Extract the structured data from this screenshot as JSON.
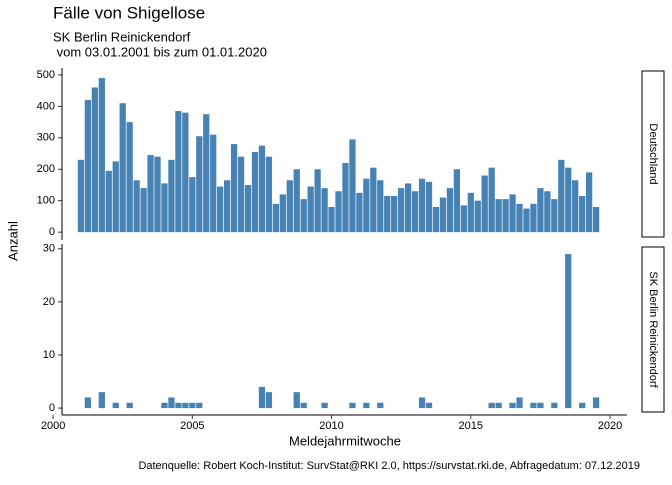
{
  "chart_data": {
    "type": "bar",
    "title": "Fälle von Shigellose",
    "subtitle": [
      "SK Berlin Reinickendorf",
      " vom 03.01.2001 bis zum 01.01.2020"
    ],
    "xlabel": "Meldejahrmitwoche",
    "ylabel": "Anzahl",
    "caption": "Datenquelle: Robert Koch-Institut: SurvStat@RKI 2.0, https://survstat.rki.de, Abfragedatum: 07.12.2019",
    "color": "#4682b4",
    "xlim": [
      2000.32,
      2020.61
    ],
    "xticks": [
      2000,
      2005,
      2010,
      2015,
      2020
    ],
    "x": [
      2001,
      2001.25,
      2001.5,
      2001.75,
      2002,
      2002.25,
      2002.5,
      2002.75,
      2003,
      2003.25,
      2003.5,
      2003.75,
      2004,
      2004.25,
      2004.5,
      2004.75,
      2005,
      2005.25,
      2005.5,
      2005.75,
      2006,
      2006.25,
      2006.5,
      2006.75,
      2007,
      2007.25,
      2007.5,
      2007.75,
      2008,
      2008.25,
      2008.5,
      2008.75,
      2009,
      2009.25,
      2009.5,
      2009.75,
      2010,
      2010.25,
      2010.5,
      2010.75,
      2011,
      2011.25,
      2011.5,
      2011.75,
      2012,
      2012.25,
      2012.5,
      2012.75,
      2013,
      2013.25,
      2013.5,
      2013.75,
      2014,
      2014.25,
      2014.5,
      2014.75,
      2015,
      2015.25,
      2015.5,
      2015.75,
      2016,
      2016.25,
      2016.5,
      2016.75,
      2017,
      2017.25,
      2017.5,
      2017.75,
      2018,
      2018.25,
      2018.5,
      2018.75,
      2019,
      2019.25,
      2019.5
    ],
    "facets": [
      {
        "name": "Deutschland",
        "ylim": [
          -25,
          522
        ],
        "yticks": [
          0,
          100,
          200,
          300,
          400,
          500
        ],
        "values": [
          230,
          420,
          460,
          490,
          195,
          225,
          410,
          350,
          165,
          140,
          245,
          240,
          155,
          230,
          385,
          380,
          175,
          305,
          375,
          310,
          145,
          165,
          280,
          240,
          150,
          255,
          275,
          240,
          90,
          120,
          165,
          200,
          105,
          145,
          200,
          140,
          80,
          130,
          220,
          295,
          125,
          170,
          205,
          165,
          115,
          115,
          140,
          155,
          130,
          170,
          160,
          80,
          110,
          140,
          200,
          85,
          125,
          100,
          180,
          205,
          105,
          105,
          120,
          90,
          75,
          90,
          140,
          130,
          105,
          230,
          205,
          165,
          115,
          190,
          80
        ]
      },
      {
        "name": "SK Berlin Reinickendorf",
        "ylim": [
          -1.3,
          30.9
        ],
        "yticks": [
          0,
          10,
          20,
          30
        ],
        "values": [
          0,
          2,
          0,
          3,
          0,
          1,
          0,
          1,
          0,
          0,
          0,
          0,
          1,
          2,
          1,
          1,
          1,
          1,
          0,
          0,
          0,
          0,
          0,
          0,
          0,
          0,
          4,
          3,
          0,
          0,
          0,
          3,
          1,
          0,
          0,
          1,
          0,
          0,
          0,
          1,
          0,
          1,
          0,
          1,
          0,
          0,
          0,
          0,
          0,
          2,
          1,
          0,
          0,
          0,
          0,
          0,
          0,
          0,
          0,
          1,
          1,
          0,
          1,
          2,
          0,
          1,
          1,
          0,
          1,
          0,
          29,
          0,
          1,
          0,
          2
        ]
      }
    ]
  }
}
